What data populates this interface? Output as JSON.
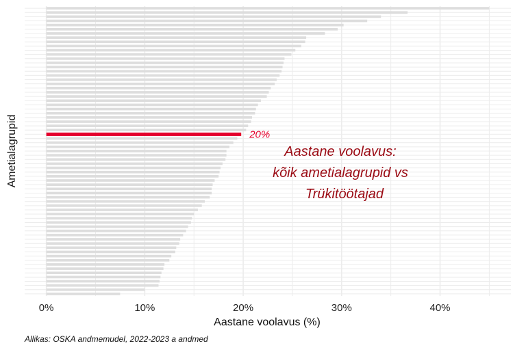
{
  "chart_data": {
    "type": "bar",
    "orientation": "horizontal",
    "xlabel": "Aastane voolavus (%)",
    "ylabel": "Ametialagrupid",
    "xlim": [
      -2.2,
      47.2
    ],
    "x_ticks": [
      0,
      10,
      20,
      30,
      40
    ],
    "x_tick_labels": [
      "0%",
      "10%",
      "20%",
      "30%",
      "40%"
    ],
    "grid": true,
    "values": [
      45.0,
      36.7,
      34.0,
      32.6,
      30.2,
      29.6,
      28.3,
      26.4,
      26.3,
      25.9,
      25.3,
      24.9,
      24.2,
      24.1,
      24.0,
      23.9,
      23.7,
      23.4,
      23.2,
      22.8,
      22.6,
      22.4,
      21.8,
      21.5,
      21.3,
      21.2,
      20.9,
      20.8,
      20.5,
      20.3,
      19.8,
      19.4,
      19.0,
      18.6,
      18.3,
      18.3,
      18.2,
      17.9,
      17.7,
      17.6,
      17.5,
      17.1,
      16.9,
      16.8,
      16.8,
      16.6,
      16.1,
      15.8,
      15.4,
      15.0,
      14.8,
      14.7,
      14.4,
      14.2,
      13.9,
      13.6,
      13.5,
      13.2,
      13.1,
      12.7,
      12.5,
      12.0,
      11.9,
      11.7,
      11.6,
      11.5,
      11.4,
      10.0,
      7.5
    ],
    "highlight": {
      "index": 30,
      "value": 19.8,
      "label": "20%"
    },
    "colors": {
      "bars": "#dddddd",
      "highlight": "#e4002b",
      "highlight_text": "#e4002b",
      "annotation": "#9b0b14",
      "grid": "#ececec"
    },
    "annotation": [
      "Aastane voolavus:",
      "kõik ametialagrupid vs",
      "Trükitöötajad"
    ]
  },
  "caption": "Allikas: OSKA andmemudel, 2022-2023 a andmed"
}
